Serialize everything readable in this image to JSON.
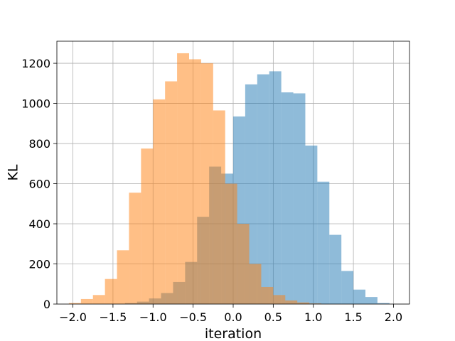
{
  "chart_data": {
    "type": "histogram",
    "title": "",
    "xlabel": "iteration",
    "ylabel": "KL",
    "xlim": [
      -2.2,
      2.2
    ],
    "ylim": [
      0,
      1310
    ],
    "grid": true,
    "xticks": [
      -2.0,
      -1.5,
      -1.0,
      -0.5,
      0.0,
      0.5,
      1.0,
      1.5,
      2.0
    ],
    "xtick_labels": [
      "−2.0",
      "−1.5",
      "−1.0",
      "−0.5",
      "0.0",
      "0.5",
      "1.0",
      "1.5",
      "2.0"
    ],
    "yticks": [
      0,
      200,
      400,
      600,
      800,
      1000,
      1200
    ],
    "ytick_labels": [
      "0",
      "200",
      "400",
      "600",
      "800",
      "1000",
      "1200"
    ],
    "series": [
      {
        "color": "#1f77b4",
        "opacity": 0.5,
        "bins": [
          {
            "x0": -1.35,
            "x1": -1.2,
            "value": 5
          },
          {
            "x0": -1.2,
            "x1": -1.05,
            "value": 12
          },
          {
            "x0": -1.05,
            "x1": -0.9,
            "value": 28
          },
          {
            "x0": -0.9,
            "x1": -0.75,
            "value": 55
          },
          {
            "x0": -0.75,
            "x1": -0.6,
            "value": 110
          },
          {
            "x0": -0.6,
            "x1": -0.45,
            "value": 210
          },
          {
            "x0": -0.45,
            "x1": -0.3,
            "value": 435
          },
          {
            "x0": -0.3,
            "x1": -0.15,
            "value": 685
          },
          {
            "x0": -0.15,
            "x1": 0.0,
            "value": 650
          },
          {
            "x0": 0.0,
            "x1": 0.15,
            "value": 935
          },
          {
            "x0": 0.15,
            "x1": 0.3,
            "value": 1095
          },
          {
            "x0": 0.3,
            "x1": 0.45,
            "value": 1145
          },
          {
            "x0": 0.45,
            "x1": 0.6,
            "value": 1160
          },
          {
            "x0": 0.6,
            "x1": 0.75,
            "value": 1055
          },
          {
            "x0": 0.75,
            "x1": 0.9,
            "value": 1050
          },
          {
            "x0": 0.9,
            "x1": 1.05,
            "value": 790
          },
          {
            "x0": 1.05,
            "x1": 1.2,
            "value": 610
          },
          {
            "x0": 1.2,
            "x1": 1.35,
            "value": 345
          },
          {
            "x0": 1.35,
            "x1": 1.5,
            "value": 165
          },
          {
            "x0": 1.5,
            "x1": 1.65,
            "value": 72
          },
          {
            "x0": 1.65,
            "x1": 1.8,
            "value": 35
          },
          {
            "x0": 1.8,
            "x1": 1.95,
            "value": 5
          }
        ]
      },
      {
        "color": "#ff7f0e",
        "opacity": 0.5,
        "bins": [
          {
            "x0": -2.05,
            "x1": -1.9,
            "value": 5
          },
          {
            "x0": -1.9,
            "x1": -1.75,
            "value": 25
          },
          {
            "x0": -1.75,
            "x1": -1.6,
            "value": 45
          },
          {
            "x0": -1.6,
            "x1": -1.45,
            "value": 125
          },
          {
            "x0": -1.45,
            "x1": -1.3,
            "value": 268
          },
          {
            "x0": -1.3,
            "x1": -1.15,
            "value": 555
          },
          {
            "x0": -1.15,
            "x1": -1.0,
            "value": 775
          },
          {
            "x0": -1.0,
            "x1": -0.85,
            "value": 1020
          },
          {
            "x0": -0.85,
            "x1": -0.7,
            "value": 1110
          },
          {
            "x0": -0.7,
            "x1": -0.55,
            "value": 1250
          },
          {
            "x0": -0.55,
            "x1": -0.4,
            "value": 1220
          },
          {
            "x0": -0.4,
            "x1": -0.25,
            "value": 1200
          },
          {
            "x0": -0.25,
            "x1": -0.1,
            "value": 965
          },
          {
            "x0": -0.1,
            "x1": 0.05,
            "value": 600
          },
          {
            "x0": 0.05,
            "x1": 0.2,
            "value": 400
          },
          {
            "x0": 0.2,
            "x1": 0.35,
            "value": 200
          },
          {
            "x0": 0.35,
            "x1": 0.5,
            "value": 85
          },
          {
            "x0": 0.5,
            "x1": 0.65,
            "value": 45
          },
          {
            "x0": 0.65,
            "x1": 0.8,
            "value": 18
          },
          {
            "x0": 0.8,
            "x1": 0.95,
            "value": 8
          },
          {
            "x0": 0.95,
            "x1": 1.1,
            "value": 3
          }
        ]
      }
    ]
  }
}
